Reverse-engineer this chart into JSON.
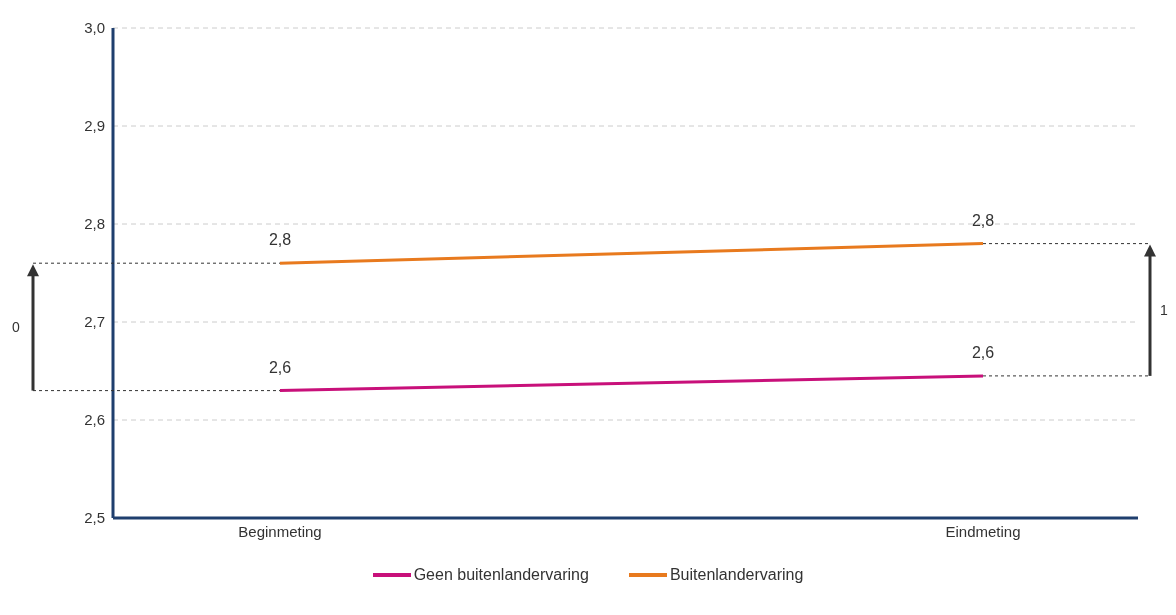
{
  "chart_data": {
    "type": "line",
    "categories": [
      "Beginmeting",
      "Eindmeting"
    ],
    "series": [
      {
        "name": "Geen buitenlandervaring",
        "color": "#c8107a",
        "values": [
          2.63,
          2.645
        ],
        "value_labels": [
          "2,6",
          "2,6"
        ]
      },
      {
        "name": "Buitenlandervaring",
        "color": "#e87a1e",
        "values": [
          2.76,
          2.78
        ],
        "value_labels": [
          "2,8",
          "2,8"
        ]
      }
    ],
    "ylim": [
      2.5,
      3.0
    ],
    "yticks": [
      {
        "value": 2.5,
        "label": "2,5"
      },
      {
        "value": 2.6,
        "label": "2,6"
      },
      {
        "value": 2.7,
        "label": "2,7"
      },
      {
        "value": 2.8,
        "label": "2,8"
      },
      {
        "value": 2.9,
        "label": "2,9"
      },
      {
        "value": 3.0,
        "label": "3,0"
      }
    ],
    "grid": "y",
    "legend": "bottom",
    "marker": "none",
    "line_style": "solid",
    "annotations": [
      "0",
      "1"
    ]
  }
}
